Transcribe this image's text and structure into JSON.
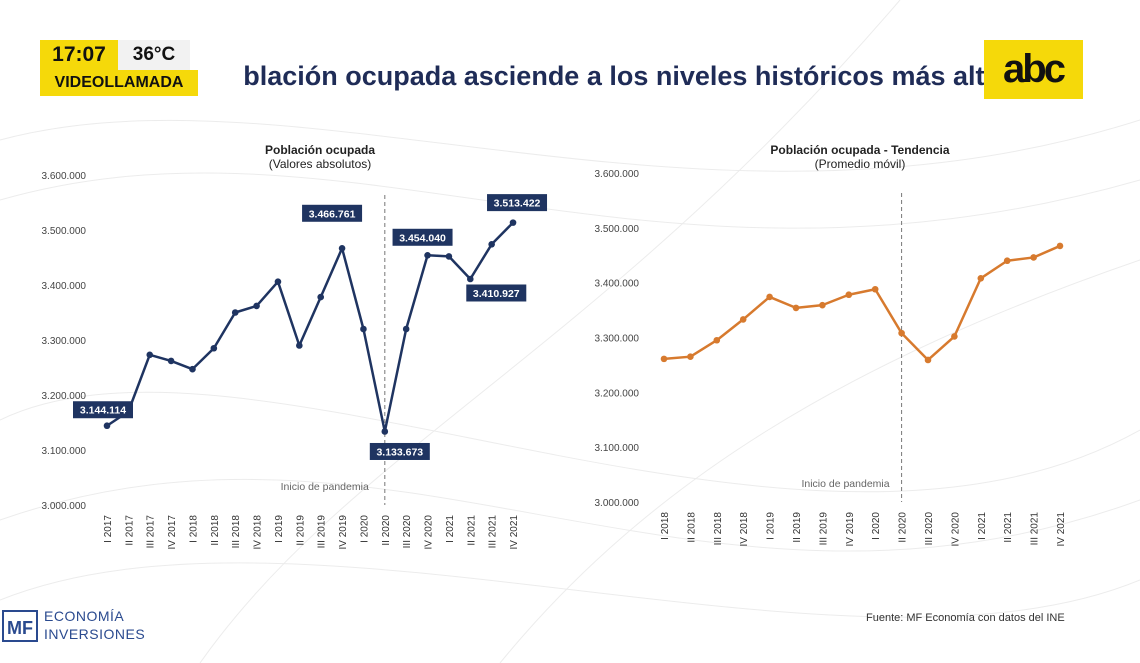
{
  "overlay": {
    "time": "17:07",
    "temperature": "36°C",
    "mode": "VIDEOLLAMADA"
  },
  "headline": "blación ocupada asciende a los niveles históricos más alto",
  "logo": {
    "text": "abc"
  },
  "colors": {
    "navy": "#1f3461",
    "orange": "#d77a2e",
    "yellow": "#f5d90a"
  },
  "chart_data": [
    {
      "type": "line",
      "title": "Población ocupada",
      "subtitle": "(Valores absolutos)",
      "ylim": [
        3000000,
        3600000
      ],
      "yticks": [
        3000000,
        3100000,
        3200000,
        3300000,
        3400000,
        3500000,
        3600000
      ],
      "ytick_labels": [
        "3.000.000",
        "3.100.000",
        "3.200.000",
        "3.300.000",
        "3.400.000",
        "3.500.000",
        "3.600.000"
      ],
      "categories": [
        "I 2017",
        "II 2017",
        "III 2017",
        "IV 2017",
        "I 2018",
        "II 2018",
        "III 2018",
        "IV 2018",
        "I 2019",
        "II 2019",
        "III 2019",
        "IV 2019",
        "I 2020",
        "II 2020",
        "III 2020",
        "IV 2020",
        "I 2021",
        "II 2021",
        "III 2021",
        "IV 2021"
      ],
      "values": [
        3144114,
        3170000,
        3273000,
        3262000,
        3247000,
        3285000,
        3350000,
        3362000,
        3406000,
        3290000,
        3378000,
        3466761,
        3320000,
        3133673,
        3320000,
        3454040,
        3452000,
        3410927,
        3474000,
        3513422
      ],
      "series_name": "Población ocupada",
      "color": "#1f3461",
      "annotations": [
        {
          "index": 0,
          "text": "3.144.114"
        },
        {
          "index": 11,
          "text": "3.466.761"
        },
        {
          "index": 13,
          "text": "3.133.673"
        },
        {
          "index": 15,
          "text": "3.454.040"
        },
        {
          "index": 17,
          "text": "3.410.927"
        },
        {
          "index": 19,
          "text": "3.513.422"
        }
      ],
      "marker_line": {
        "index": 13,
        "label": "Inicio de pandemia"
      }
    },
    {
      "type": "line",
      "title": "Población ocupada - Tendencia",
      "subtitle": "(Promedio móvil)",
      "ylim": [
        3000000,
        3600000
      ],
      "yticks": [
        3000000,
        3100000,
        3200000,
        3300000,
        3400000,
        3500000,
        3600000
      ],
      "ytick_labels": [
        "3.000.000",
        "3.100.000",
        "3.200.000",
        "3.300.000",
        "3.400.000",
        "3.500.000",
        "3.600.000"
      ],
      "categories": [
        "I 2018",
        "II 2018",
        "III 2018",
        "IV 2018",
        "I 2019",
        "II 2019",
        "III 2019",
        "IV 2019",
        "I 2020",
        "II 2020",
        "III 2020",
        "IV 2020",
        "I 2021",
        "II 2021",
        "III 2021",
        "IV 2021"
      ],
      "values": [
        3261000,
        3265000,
        3295000,
        3333000,
        3374000,
        3354000,
        3359000,
        3378000,
        3388000,
        3308000,
        3259000,
        3302000,
        3408000,
        3440000,
        3446000,
        3467000
      ],
      "series_name": "Promedio móvil",
      "color": "#d77a2e",
      "annotations": [],
      "marker_line": {
        "index": 9,
        "label": "Inicio de pandemia"
      }
    }
  ],
  "footer": {
    "brand_mark": "MF",
    "brand_line1": "ECONOMÍA",
    "brand_line2": "INVERSIONES",
    "source": "Fuente: MF Economía con datos del INE"
  }
}
